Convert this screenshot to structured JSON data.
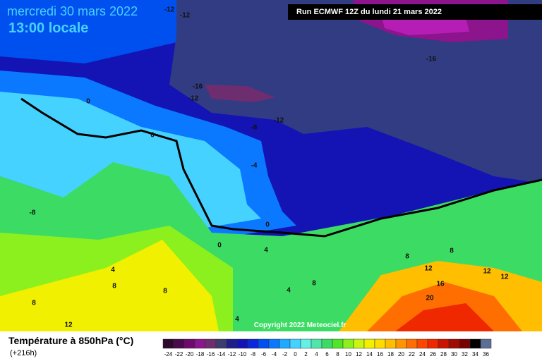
{
  "header": {
    "date": "mercredi 30 mars 2022",
    "time": "13:00 locale",
    "run": "Run ECMWF 12Z du lundi 21 mars 2022"
  },
  "map": {
    "contour_labels": [
      "-12",
      "-12",
      "-16",
      "-16",
      "-12",
      "0",
      "-12",
      "-8",
      "0",
      "-4",
      "-8",
      "0",
      "0",
      "4",
      "4",
      "8",
      "8",
      "4",
      "8",
      "8",
      "12",
      "4",
      "8",
      "8",
      "12",
      "12",
      "12",
      "16",
      "20"
    ],
    "copyright": "Copyright 2022 Meteociel.fr"
  },
  "legend": {
    "title": "Température à 850hPa (°C)",
    "subtitle": "(+216h)",
    "values": [
      -24,
      -22,
      -20,
      -18,
      -16,
      -14,
      -12,
      -10,
      -8,
      -6,
      -4,
      -2,
      0,
      2,
      4,
      6,
      8,
      10,
      12,
      14,
      16,
      18,
      20,
      22,
      24,
      26,
      28,
      30,
      32,
      34,
      36
    ],
    "colors": [
      "#2d0a2d",
      "#4b0a4b",
      "#6e0a6e",
      "#8c148c",
      "#6e2d6e",
      "#3c3c6e",
      "#1e1e8c",
      "#1414b4",
      "#0a28dc",
      "#0050f0",
      "#0a78ff",
      "#1eaaff",
      "#46d2ff",
      "#64f0e6",
      "#50e6aa",
      "#3cdc64",
      "#50e628",
      "#8cf01e",
      "#c8f514",
      "#f0f000",
      "#ffdc00",
      "#ffbe00",
      "#ff9600",
      "#ff6e00",
      "#ff4600",
      "#f02800",
      "#c81400",
      "#a00a00",
      "#780000",
      "#000000",
      "#5a6e96"
    ]
  }
}
